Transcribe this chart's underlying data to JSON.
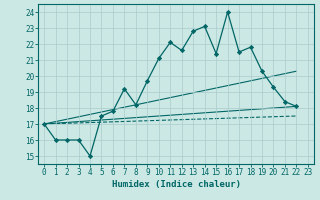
{
  "xlabel": "Humidex (Indice chaleur)",
  "xlim": [
    -0.5,
    23.5
  ],
  "ylim": [
    14.5,
    24.5
  ],
  "xticks": [
    0,
    1,
    2,
    3,
    4,
    5,
    6,
    7,
    8,
    9,
    10,
    11,
    12,
    13,
    14,
    15,
    16,
    17,
    18,
    19,
    20,
    21,
    22,
    23
  ],
  "yticks": [
    15,
    16,
    17,
    18,
    19,
    20,
    21,
    22,
    23,
    24
  ],
  "background_color": "#cce8e4",
  "grid_color": "#aacccc",
  "line_color": "#006666",
  "zigzag": {
    "x": [
      0,
      1,
      2,
      3,
      4,
      5,
      6,
      7,
      8,
      9,
      10,
      11,
      12,
      13,
      14,
      15,
      16,
      17,
      18,
      19,
      20,
      21,
      22
    ],
    "y": [
      17,
      16,
      16,
      16,
      15,
      17.5,
      17.8,
      19.2,
      18.2,
      19.7,
      21.1,
      22.1,
      21.6,
      22.8,
      23.1,
      21.4,
      24.0,
      21.5,
      21.8,
      20.3,
      19.3,
      18.4,
      18.1
    ]
  },
  "straight_lines": [
    {
      "x": [
        0,
        22
      ],
      "y": [
        17,
        20.3
      ]
    },
    {
      "x": [
        0,
        22
      ],
      "y": [
        17,
        18.1
      ]
    },
    {
      "x": [
        0,
        22
      ],
      "y": [
        17,
        17.5
      ],
      "dashed": true
    }
  ],
  "font_family": "monospace",
  "tick_fontsize": 5.5,
  "label_fontsize": 6.5
}
